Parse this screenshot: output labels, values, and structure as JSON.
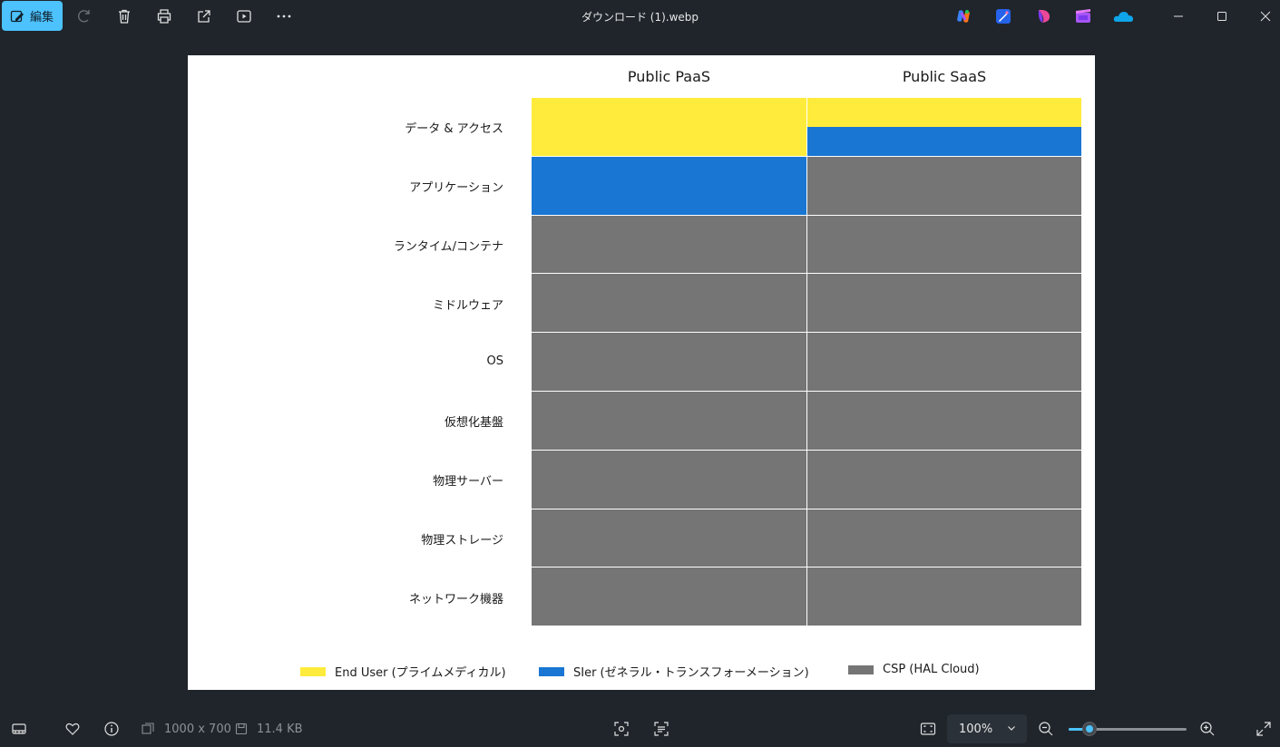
{
  "titlebar": {
    "edit_label": "編集",
    "filename": "ダウンロード (1).webp",
    "toolbar_icons": [
      "rotate-icon",
      "delete-icon",
      "print-icon",
      "share-icon",
      "slideshow-icon",
      "more-icon"
    ],
    "app_icons": [
      "copilot-icon",
      "designer-icon",
      "clipchamp-icon",
      "video-editor-icon",
      "onedrive-icon"
    ]
  },
  "chart_data": {
    "type": "table",
    "columns": [
      "Public PaaS",
      "Public SaaS"
    ],
    "rows": [
      "データ & アクセス",
      "アプリケーション",
      "ランタイム/コンテナ",
      "ミドルウェア",
      "OS",
      "仮想化基盤",
      "物理サーバー",
      "物理ストレージ",
      "ネットワーク機器"
    ],
    "responsibility": [
      [
        "End User",
        "End User+SIer"
      ],
      [
        "SIer",
        "CSP"
      ],
      [
        "CSP",
        "CSP"
      ],
      [
        "CSP",
        "CSP"
      ],
      [
        "CSP",
        "CSP"
      ],
      [
        "CSP",
        "CSP"
      ],
      [
        "CSP",
        "CSP"
      ],
      [
        "CSP",
        "CSP"
      ],
      [
        "CSP",
        "CSP"
      ]
    ],
    "legend": [
      {
        "key": "End User",
        "label": "End User (プライムメディカル)",
        "color": "#ffeb3b"
      },
      {
        "key": "SIer",
        "label": "SIer (ゼネラル・トランスフォーメーション)",
        "color": "#1976d2"
      },
      {
        "key": "CSP",
        "label": "CSP (HAL Cloud)",
        "color": "#757575"
      }
    ]
  },
  "bottombar": {
    "dimensions": "1000 x 700",
    "filesize": "11.4 KB",
    "zoom": "100%",
    "zoom_slider_fraction": 0.18
  }
}
